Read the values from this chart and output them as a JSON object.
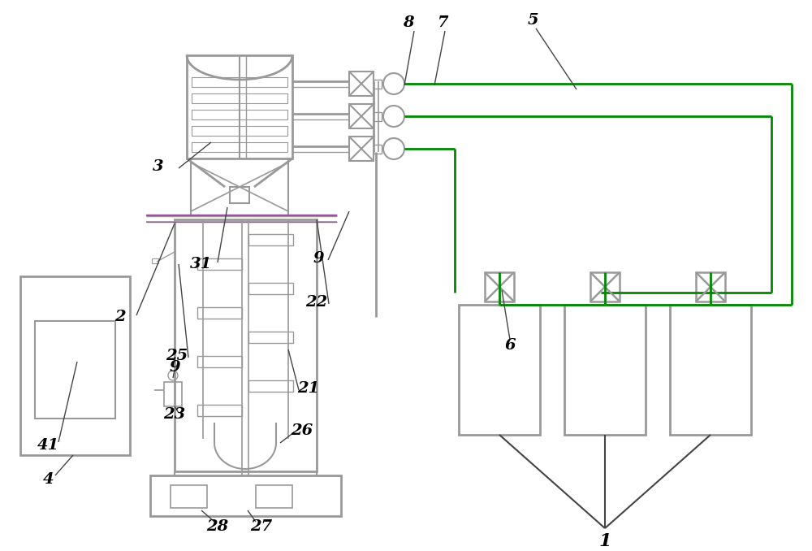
{
  "bg_color": "#ffffff",
  "lc": "#999999",
  "dc": "#444444",
  "gc": "#008800",
  "pc": "#a050a0",
  "fig_w": 10.0,
  "fig_h": 6.78,
  "dpi": 100
}
